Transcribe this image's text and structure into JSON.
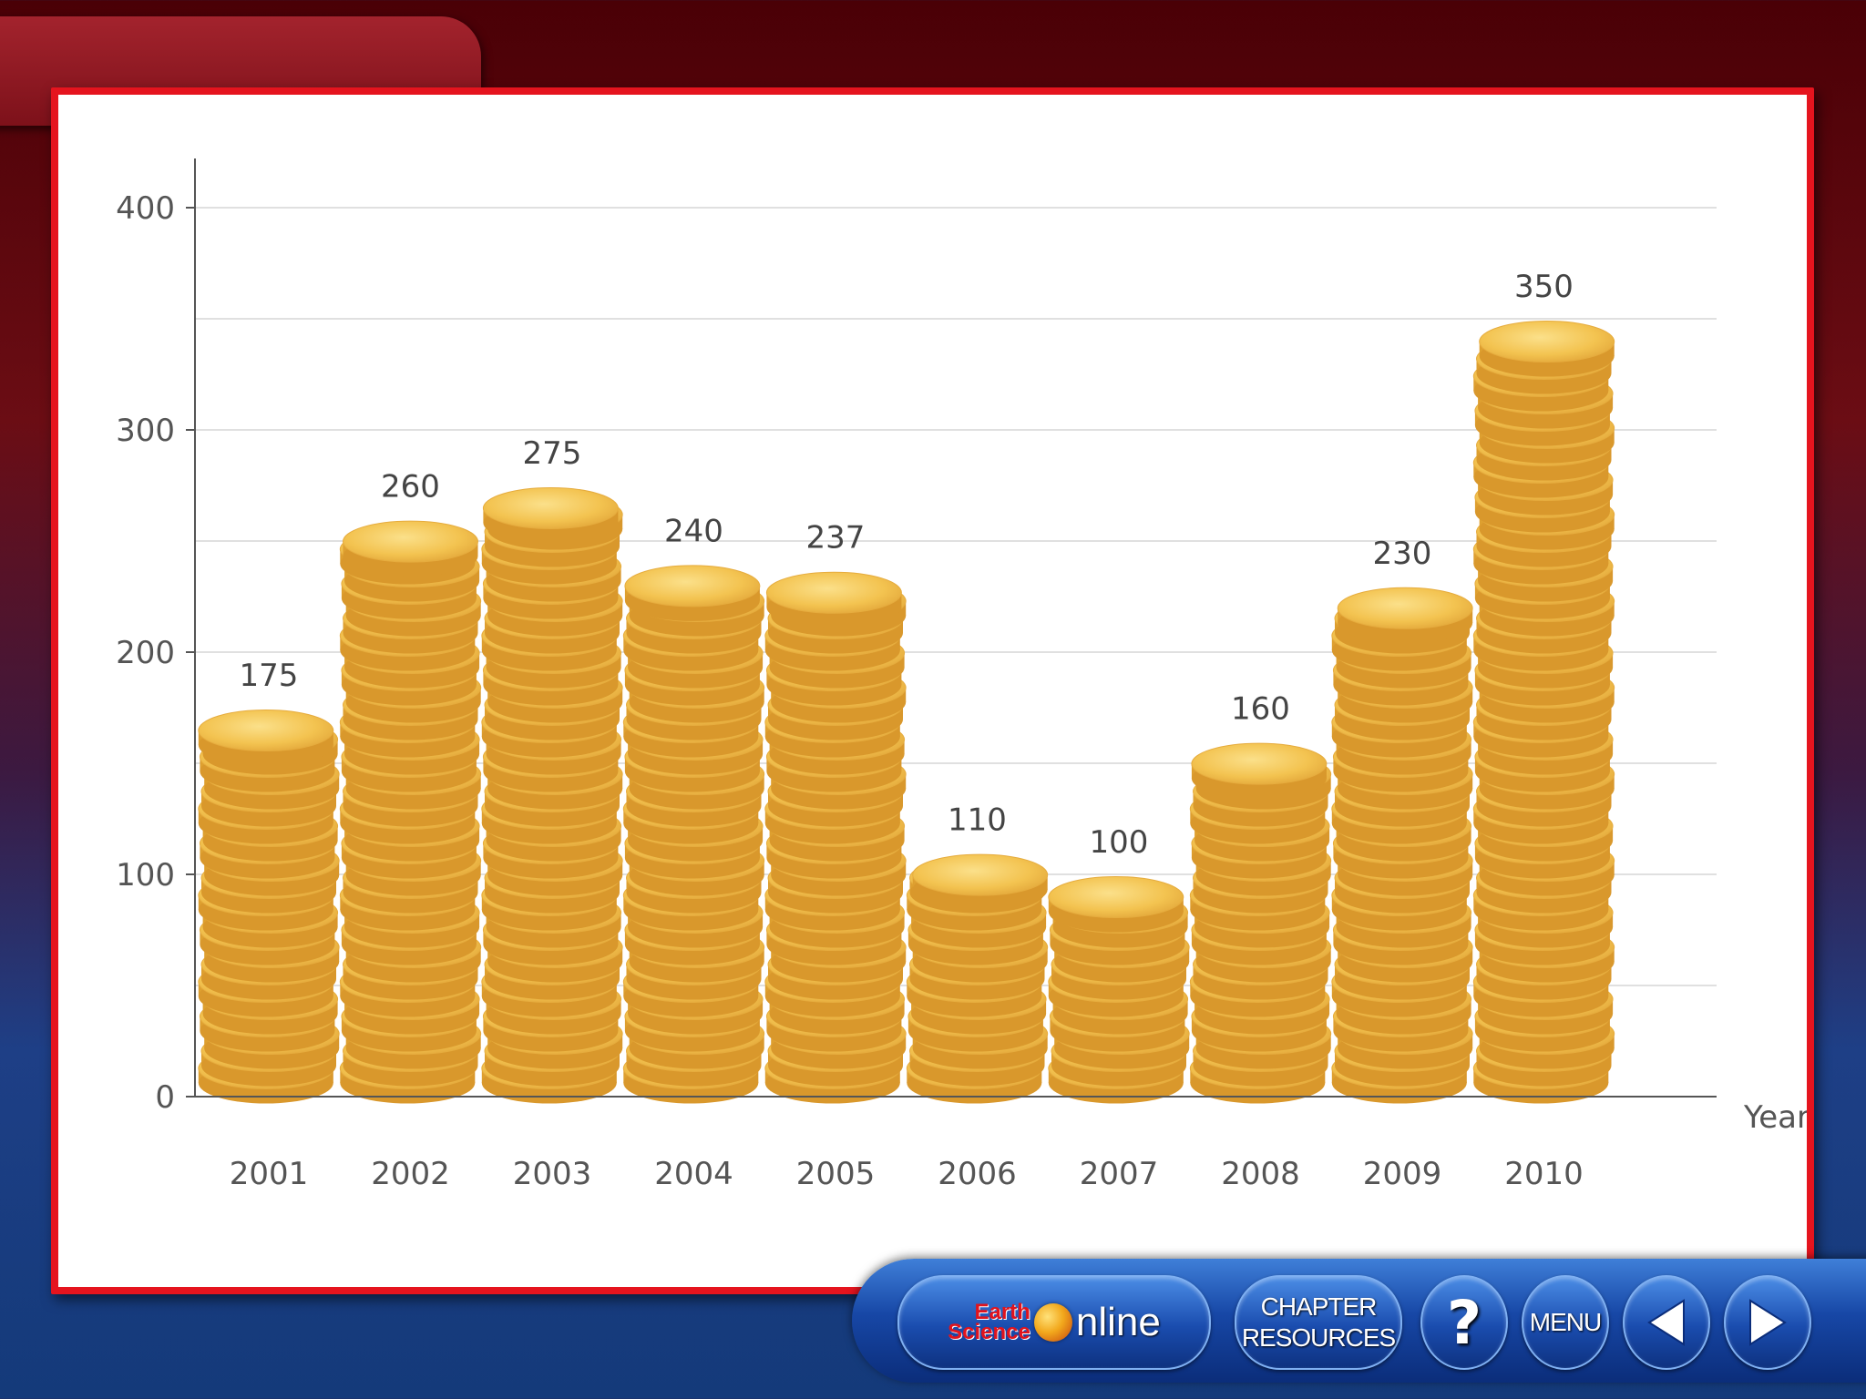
{
  "chart_data": {
    "type": "bar",
    "title": "",
    "xlabel": "Year",
    "ylabel": "",
    "ylim": [
      0,
      400
    ],
    "yticks": [
      0,
      100,
      200,
      300,
      400
    ],
    "grid": true,
    "categories": [
      "2001",
      "2002",
      "2003",
      "2004",
      "2005",
      "2006",
      "2007",
      "2008",
      "2009",
      "2010"
    ],
    "values": [
      175,
      260,
      275,
      240,
      237,
      110,
      100,
      160,
      230,
      350
    ],
    "value_labels": [
      "175",
      "260",
      "275",
      "240",
      "237",
      "110",
      "100",
      "160",
      "230",
      "350"
    ],
    "bar_style": "stacked-gold-coins",
    "bar_color": "#f0bd48"
  },
  "navbar": {
    "logo_line1": "Earth",
    "logo_line2": "Science",
    "logo_online": "nline",
    "chapter_line1": "CHAPTER",
    "chapter_line2": "RESOURCES",
    "help_label": "?",
    "menu_label": "MENU",
    "prev_icon": "triangle-left-icon",
    "next_icon": "triangle-right-icon"
  },
  "colors": {
    "frame_red": "#e5141e",
    "nav_blue": "#1747a6",
    "coin_gold": "#f0bd48"
  }
}
